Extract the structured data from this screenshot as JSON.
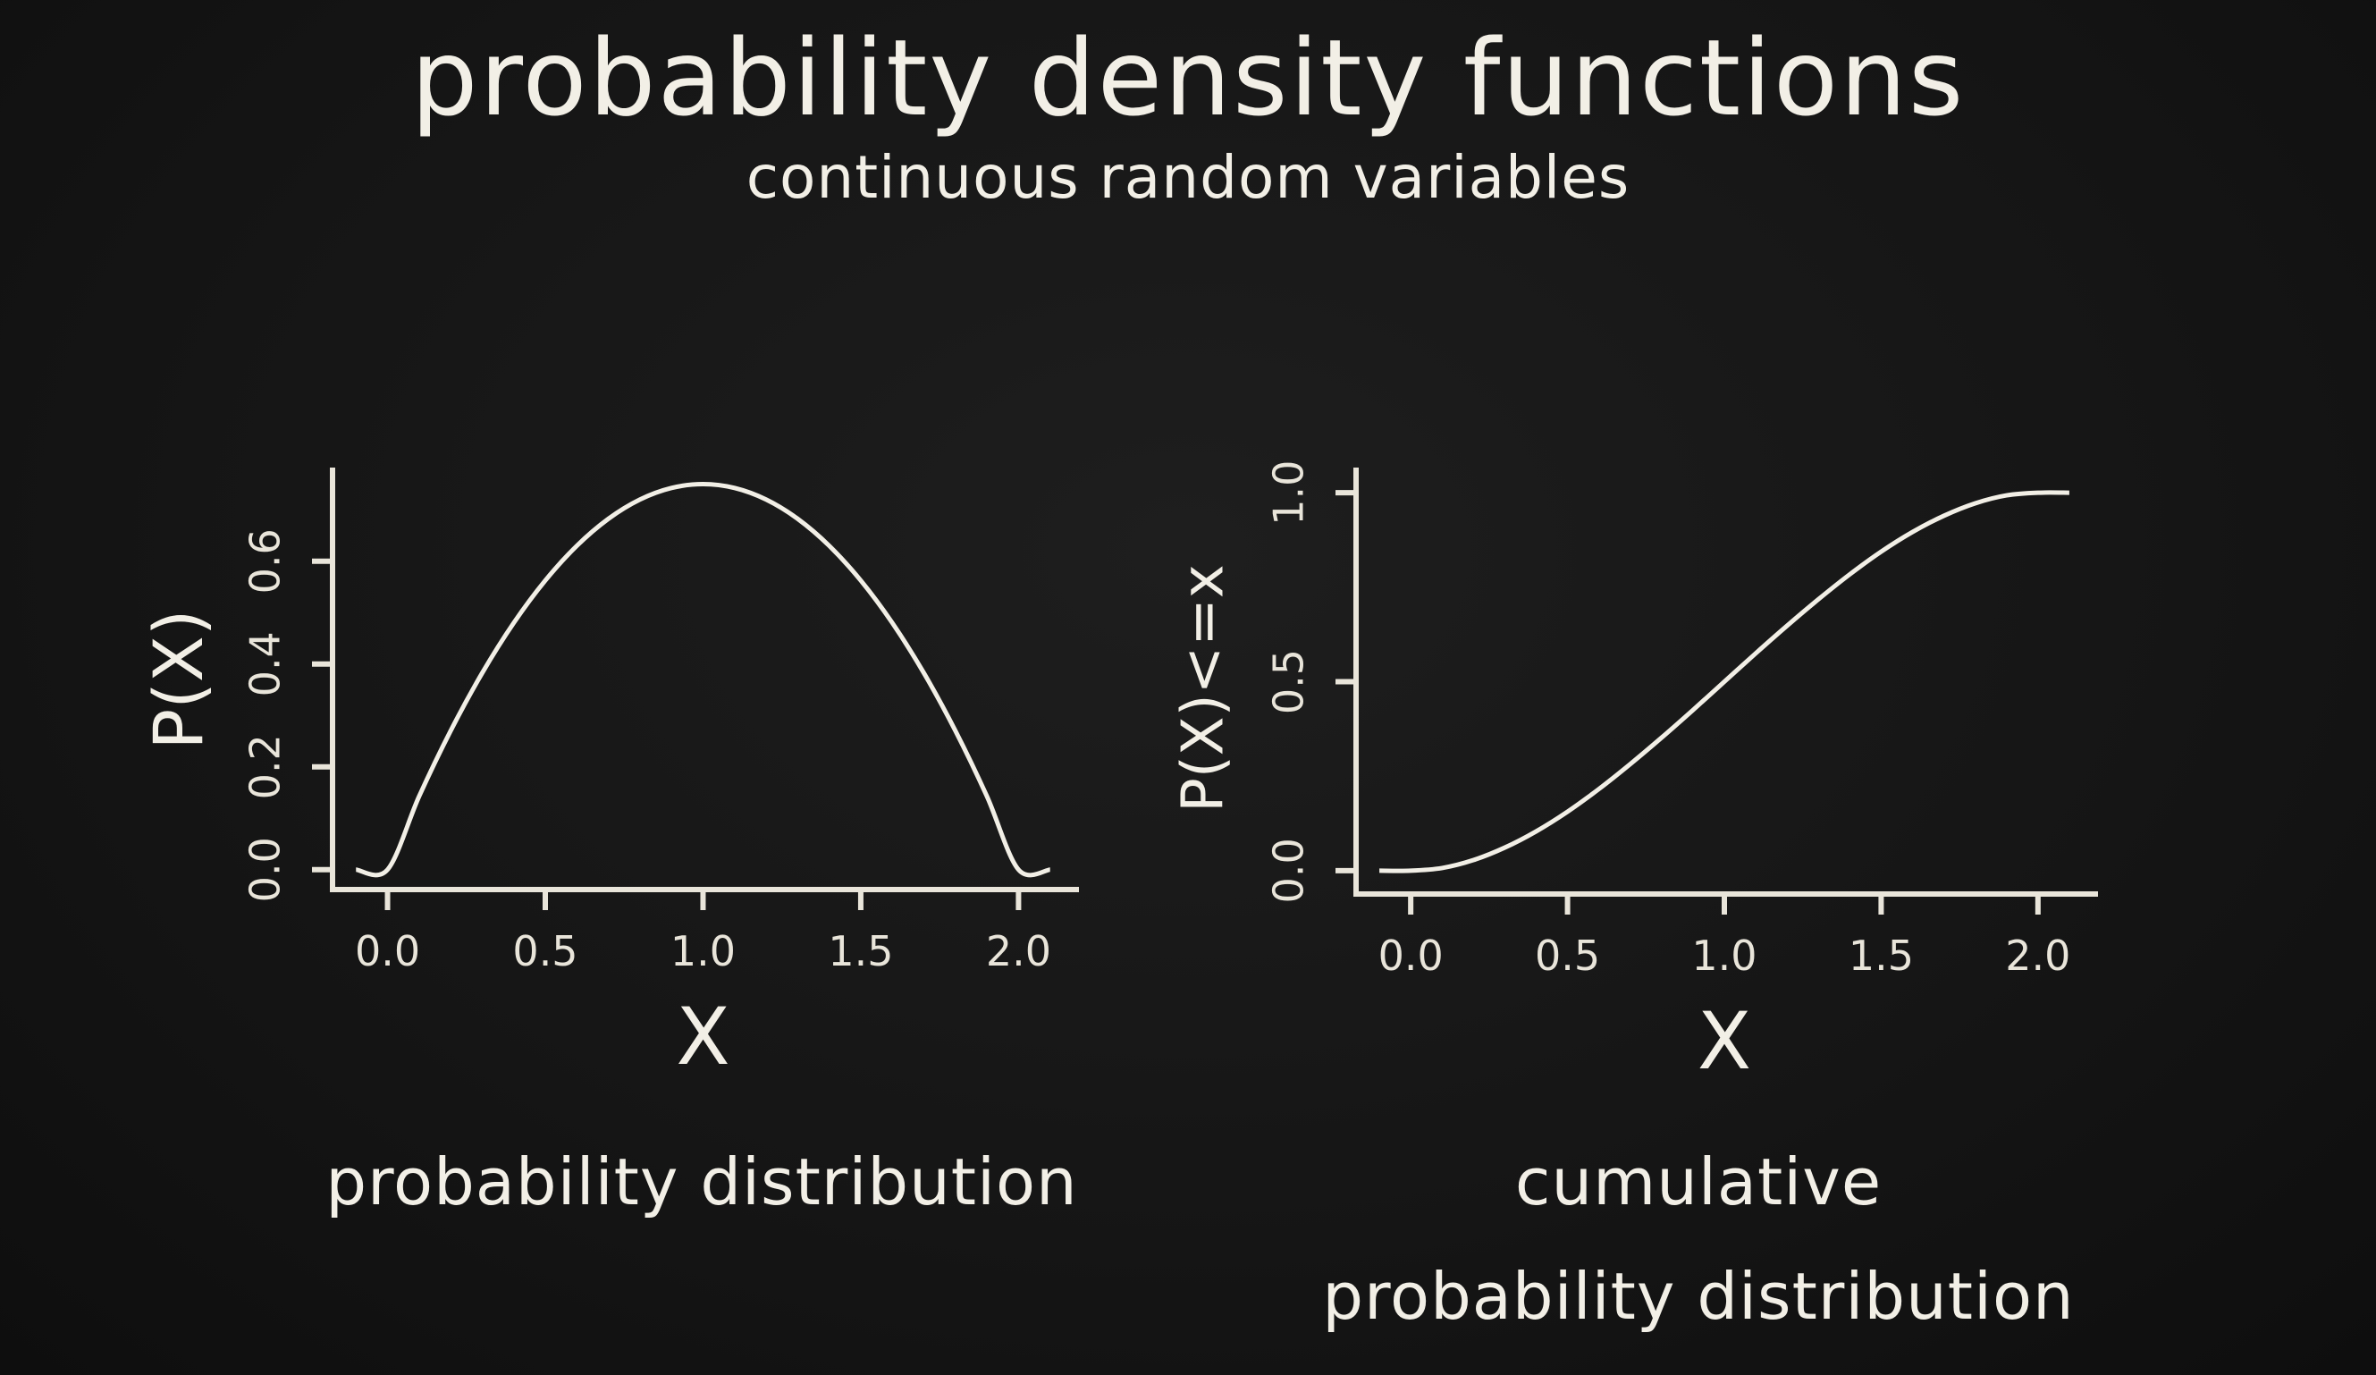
{
  "title": "probability density functions",
  "subtitle": "continuous random variables",
  "captions": {
    "left": "probability distribution",
    "right_line1": "cumulative",
    "right_line2": "probability distribution"
  },
  "chart_data": [
    {
      "type": "line",
      "xlabel": "X",
      "ylabel": "P(X)",
      "xlim": [
        -0.18,
        2.2
      ],
      "ylim": [
        -0.03,
        0.77
      ],
      "xticks": [
        "0.0",
        "0.5",
        "1.0",
        "1.5",
        "2.0"
      ],
      "yticks": [
        "0.0",
        "0.2",
        "0.4",
        "0.6"
      ],
      "series": [
        {
          "x": [
            -0.1,
            0.0,
            0.1,
            0.2,
            0.3,
            0.4,
            0.5,
            0.6,
            0.7,
            0.8,
            0.9,
            1.0,
            1.1,
            1.2,
            1.3,
            1.4,
            1.5,
            1.6,
            1.7,
            1.8,
            1.9,
            2.0,
            2.1
          ],
          "y": [
            0.0,
            0.0,
            0.1425,
            0.27,
            0.3825,
            0.48,
            0.5625,
            0.63,
            0.6825,
            0.72,
            0.7425,
            0.75,
            0.7425,
            0.72,
            0.6825,
            0.63,
            0.5625,
            0.48,
            0.3825,
            0.27,
            0.1425,
            0.0,
            0.0
          ]
        }
      ]
    },
    {
      "type": "line",
      "xlabel": "X",
      "ylabel": "P(X)<=x",
      "xlim": [
        -0.18,
        2.2
      ],
      "ylim": [
        -0.05,
        1.05
      ],
      "xticks": [
        "0.0",
        "0.5",
        "1.0",
        "1.5",
        "2.0"
      ],
      "yticks": [
        "0.0",
        "0.5",
        "1.0"
      ],
      "series": [
        {
          "x": [
            -0.1,
            0.0,
            0.1,
            0.2,
            0.3,
            0.4,
            0.5,
            0.6,
            0.7,
            0.8,
            0.9,
            1.0,
            1.1,
            1.2,
            1.3,
            1.4,
            1.5,
            1.6,
            1.7,
            1.8,
            1.9,
            2.0,
            2.1
          ],
          "y": [
            0.0,
            0.0,
            0.007,
            0.028,
            0.061,
            0.104,
            0.156,
            0.216,
            0.282,
            0.352,
            0.425,
            0.5,
            0.575,
            0.648,
            0.718,
            0.784,
            0.844,
            0.896,
            0.939,
            0.972,
            0.993,
            1.0,
            1.0
          ]
        }
      ]
    }
  ]
}
